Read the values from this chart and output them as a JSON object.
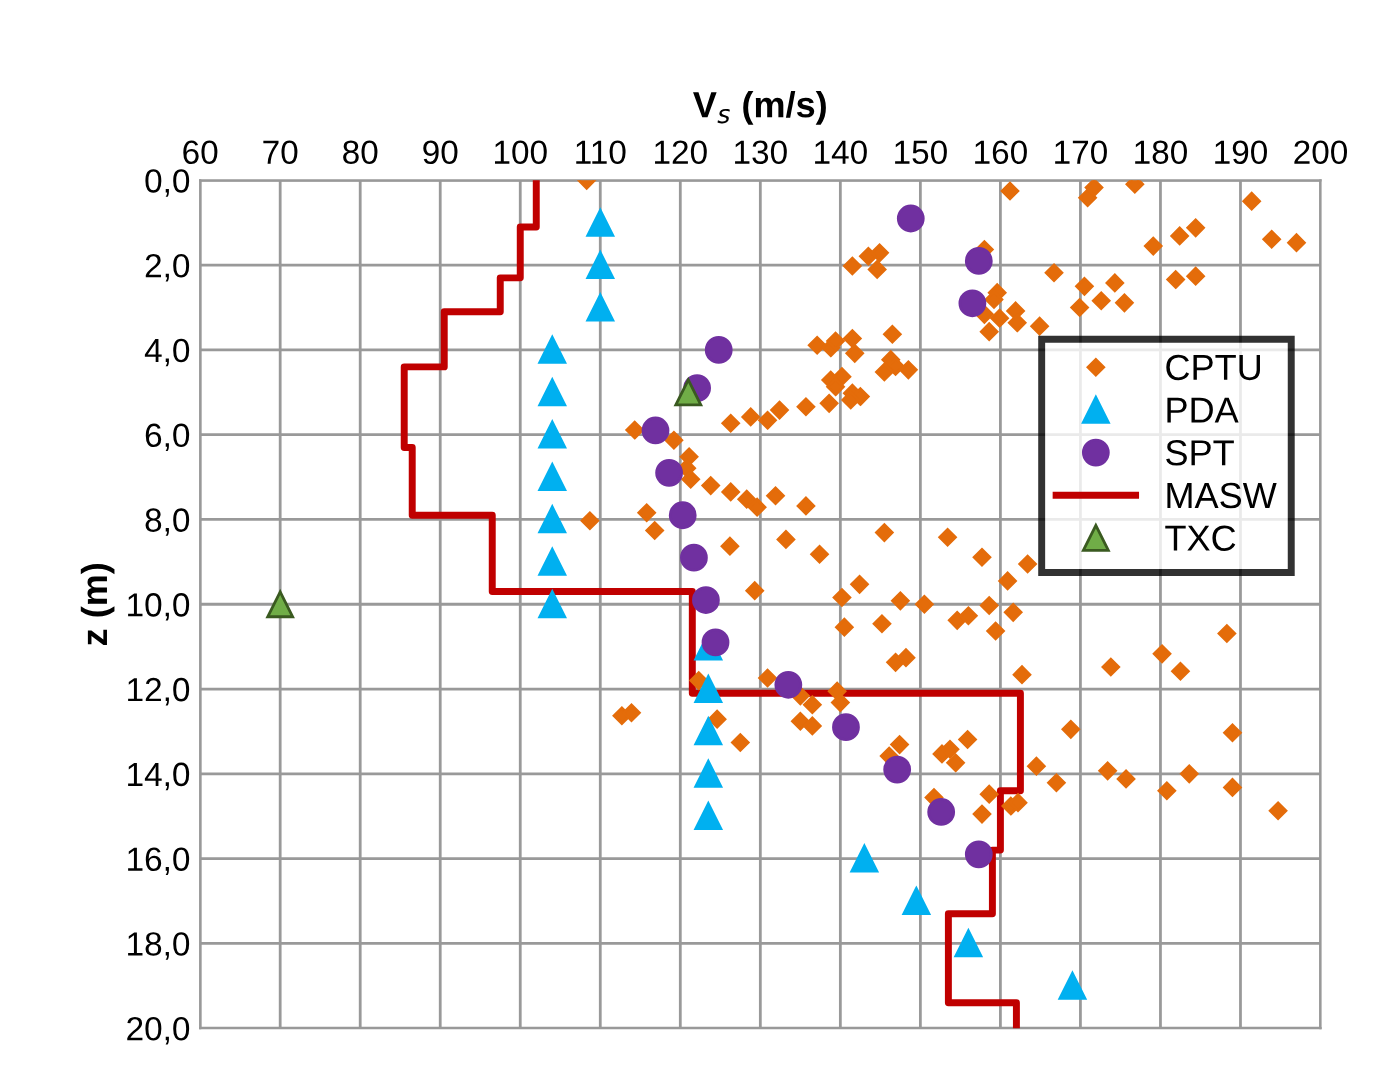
{
  "chart_data": {
    "type": "scatter",
    "xlabel": "V$_{s}$ (m/s)",
    "ylabel": "z (m)",
    "xlim": [
      60,
      200
    ],
    "xticks": [
      60,
      70,
      80,
      90,
      100,
      110,
      120,
      130,
      140,
      150,
      160,
      170,
      180,
      190,
      200
    ],
    "ylim": [
      20,
      0
    ],
    "yticks": [
      {
        "value": 0,
        "label": "0,0"
      },
      {
        "value": 2,
        "label": "2,0"
      },
      {
        "value": 4,
        "label": "4,0"
      },
      {
        "value": 6,
        "label": "6,0"
      },
      {
        "value": 8,
        "label": "8,0"
      },
      {
        "value": 10,
        "label": "10,0"
      },
      {
        "value": 12,
        "label": "12,0"
      },
      {
        "value": 14,
        "label": "14,0"
      },
      {
        "value": 16,
        "label": "16,0"
      },
      {
        "value": 18,
        "label": "18,0"
      },
      {
        "value": 20,
        "label": "20,0"
      }
    ],
    "grid": true,
    "legend": "right",
    "series": [
      {
        "name": "CPTU",
        "marker": "diamond",
        "color": "#e46c0a",
        "x": [
          108.3,
          161.2,
          170.9,
          171.7,
          176.8,
          191.4,
          193.9,
          197,
          179.1,
          182.4,
          184.4,
          141.5,
          143.5,
          144.9,
          144.6,
          158,
          166.7,
          170.5,
          174.3,
          181.9,
          184.4,
          159.6,
          159.2,
          158,
          159.9,
          161.9,
          162.1,
          158.6,
          164.9,
          169.9,
          172.6,
          175.5,
          137.1,
          138.8,
          139.4,
          141.5,
          141.8,
          146.5,
          146.3,
          146.9,
          145.5,
          148.5,
          138.8,
          140.2,
          139.4,
          141.5,
          142.5,
          141.3,
          138.6,
          135.7,
          132.4,
          130.9,
          128.8,
          126.3,
          114.3,
          119.2,
          121.1,
          120.8,
          121.3,
          123.8,
          126.3,
          128.3,
          129.6,
          131.9,
          135.7,
          115.8,
          116.8,
          108.7,
          126.2,
          129.3,
          133.2,
          137.4,
          145.5,
          153.4,
          157.7,
          163.4,
          160.9,
          142.4,
          140.2,
          147.5,
          150.5,
          154.6,
          156,
          158.6,
          161.6,
          159.4,
          140.5,
          145.2,
          188.3,
          146.9,
          148.2,
          180.2,
          182.5,
          173.8,
          162.7,
          122.3,
          130.9,
          135,
          136.5,
          139.6,
          140,
          112.7,
          113.9,
          124.6,
          135,
          136.5,
          127.5,
          147.4,
          146.1,
          152.7,
          153.7,
          155.9,
          154.4,
          168.8,
          189,
          164.5,
          167,
          173.4,
          175.7,
          180.8,
          183.6,
          189,
          194.7,
          151.7,
          158.6,
          161.3,
          162.2,
          157.7
        ],
        "values": [
          0,
          0.25,
          0.41,
          0.17,
          0.09,
          0.49,
          1.39,
          1.47,
          1.55,
          1.31,
          1.12,
          2.02,
          1.79,
          1.71,
          2.1,
          1.63,
          2.18,
          2.5,
          2.42,
          2.34,
          2.26,
          2.65,
          2.81,
          3.16,
          3.25,
          3.08,
          3.36,
          3.57,
          3.44,
          3.0,
          2.84,
          2.89,
          3.89,
          3.95,
          3.79,
          3.73,
          4.08,
          3.63,
          4.23,
          4.39,
          4.52,
          4.47,
          4.71,
          4.63,
          4.87,
          5.02,
          5.1,
          5.18,
          5.26,
          5.34,
          5.42,
          5.66,
          5.58,
          5.73,
          5.89,
          6.13,
          6.52,
          6.79,
          7.05,
          7.2,
          7.35,
          7.52,
          7.71,
          7.44,
          7.68,
          7.84,
          8.26,
          8.03,
          8.63,
          9.68,
          8.47,
          8.82,
          8.31,
          8.42,
          8.89,
          9.05,
          9.45,
          9.53,
          9.84,
          9.92,
          10.0,
          10.38,
          10.27,
          10.03,
          10.19,
          10.63,
          10.54,
          10.46,
          10.69,
          11.37,
          11.26,
          11.17,
          11.58,
          11.48,
          11.66,
          11.8,
          11.74,
          12.16,
          12.37,
          12.05,
          12.32,
          12.63,
          12.56,
          12.71,
          12.76,
          12.87,
          13.26,
          13.31,
          13.58,
          13.53,
          13.42,
          13.19,
          13.74,
          12.95,
          13.03,
          13.82,
          14.21,
          13.93,
          14.12,
          14.4,
          14.0,
          14.32,
          14.87,
          14.56,
          14.48,
          14.76,
          14.68,
          14.95
        ]
      },
      {
        "name": "PDA",
        "marker": "triangle",
        "color": "#00b0f0",
        "x": [
          110,
          110,
          110,
          104,
          104,
          104,
          104,
          104,
          104,
          104,
          123.5,
          123.5,
          123.5,
          123.5,
          123.5,
          143,
          149.5,
          156,
          169
        ],
        "values": [
          1,
          2,
          3,
          4,
          5,
          6,
          7,
          8,
          9,
          10,
          11,
          12,
          13,
          14,
          15,
          16,
          17,
          18,
          19
        ]
      },
      {
        "name": "SPT",
        "marker": "circle",
        "color": "#7030a0",
        "x": [
          148.8,
          157.3,
          156.5,
          124.8,
          122.1,
          116.9,
          118.6,
          120.3,
          121.7,
          123.2,
          124.4,
          133.5,
          140.7,
          147.1,
          152.6,
          157.3
        ],
        "values": [
          0.9,
          1.9,
          2.9,
          4,
          4.9,
          5.9,
          6.9,
          7.9,
          8.9,
          9.9,
          10.9,
          11.9,
          12.9,
          13.9,
          14.9,
          15.9
        ]
      },
      {
        "name": "MASW",
        "type": "line",
        "marker": "none",
        "color": "#c00000",
        "x": [
          102,
          102,
          100,
          100,
          97.5,
          97.5,
          90.5,
          90.5,
          85.5,
          85.5,
          86.5,
          86.5,
          96.5,
          96.5,
          121.5,
          121.5,
          162.5,
          162.5,
          160,
          160,
          159,
          159,
          153.5,
          153.5,
          162,
          162
        ],
        "values": [
          0,
          1.1,
          1.1,
          2.3,
          2.3,
          3.1,
          3.1,
          4.4,
          4.4,
          6.3,
          6.3,
          7.9,
          7.9,
          9.7,
          9.7,
          12.1,
          12.1,
          14.4,
          14.4,
          15.8,
          15.8,
          17.3,
          17.3,
          19.4,
          19.4,
          20
        ]
      },
      {
        "name": "TXC",
        "marker": "triangle",
        "color": "#70ad47",
        "x": [
          121,
          70
        ],
        "values": [
          5,
          10
        ]
      }
    ]
  }
}
